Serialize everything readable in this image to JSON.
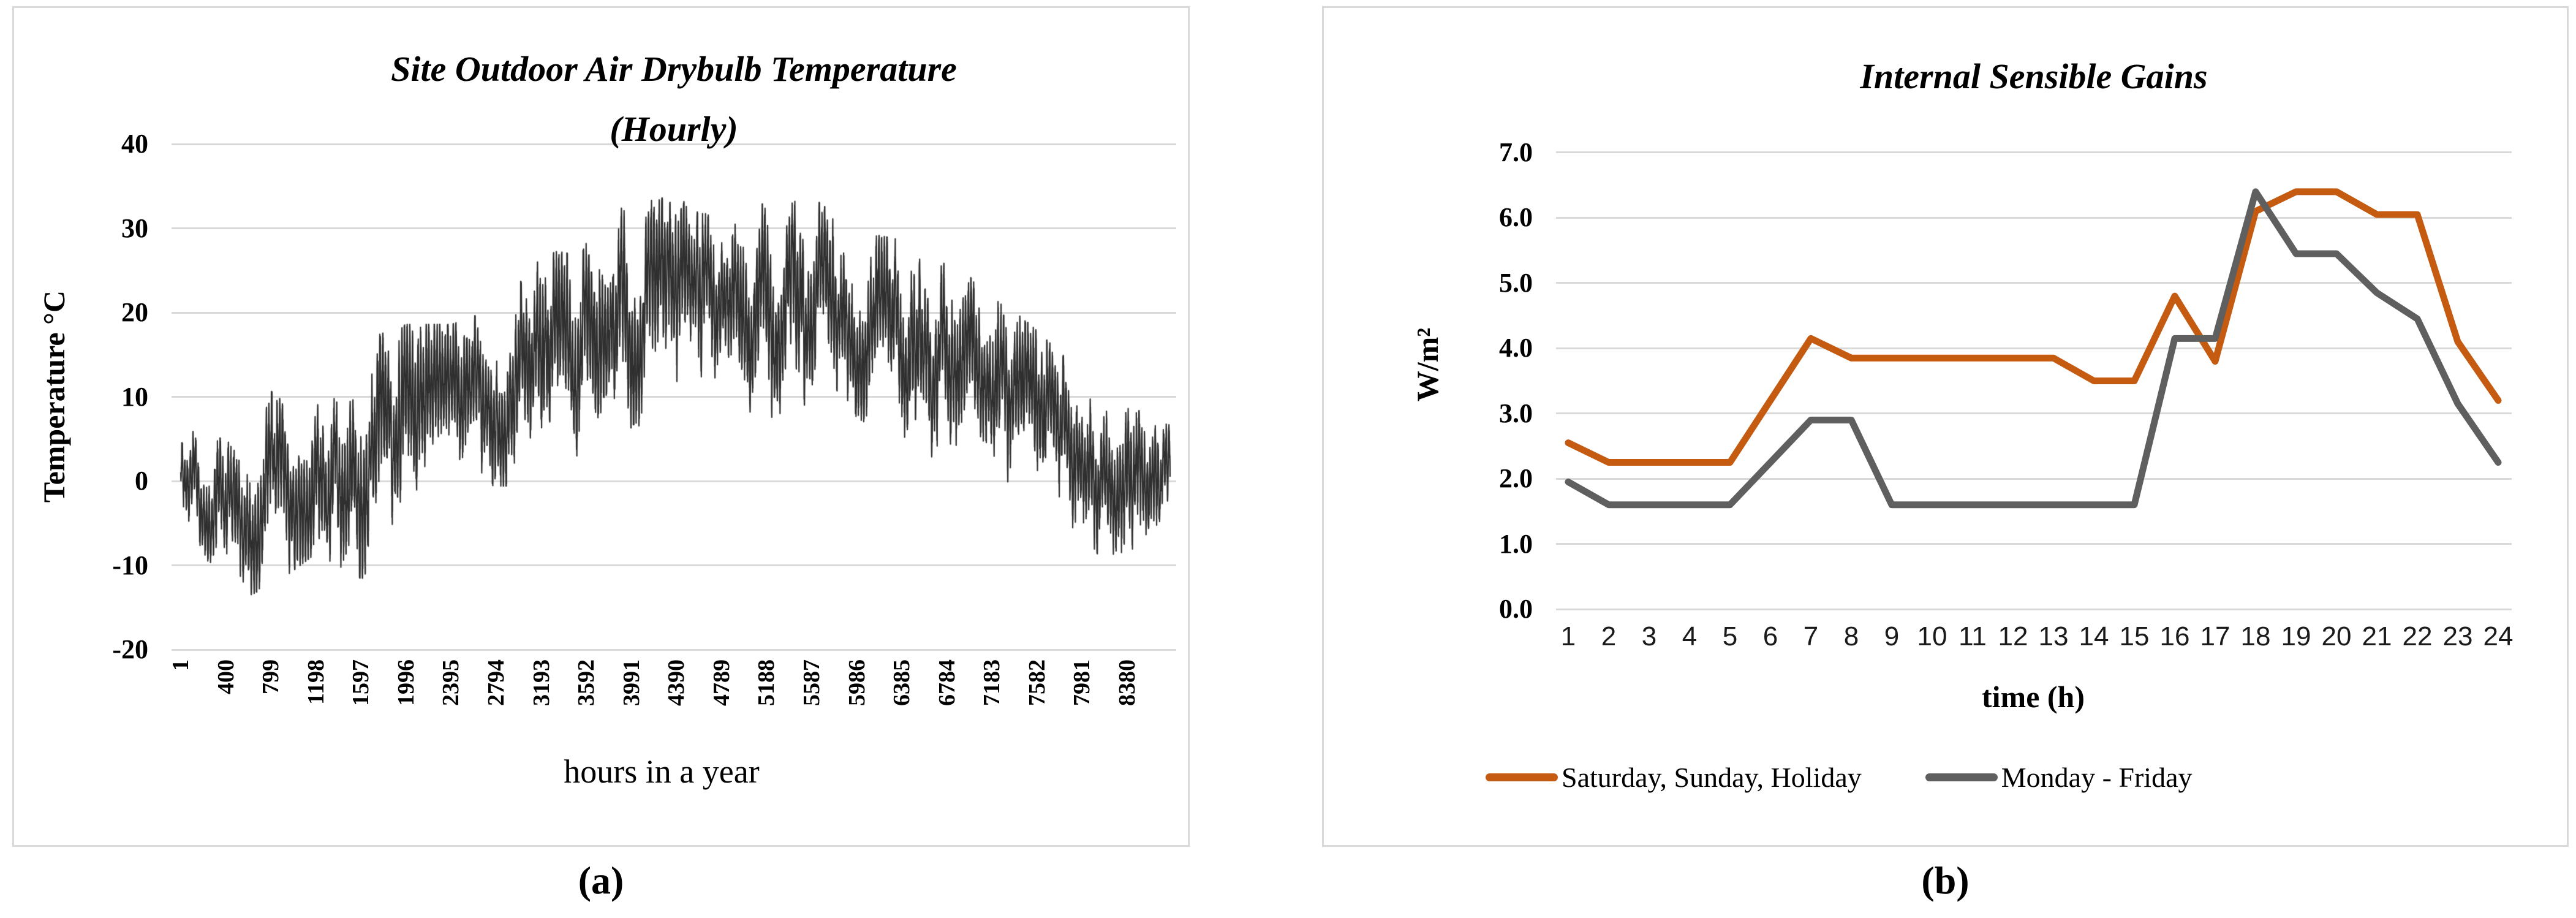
{
  "figure": {
    "caption_a": "(a)",
    "caption_b": "(b)"
  },
  "colors": {
    "grid": "#D9D9D9",
    "panel_border": "#D9D9D9",
    "temperature_series": "#2F2F2F",
    "weekend_series": "#C55A11",
    "weekday_series": "#5F5F5F"
  },
  "chart_data": [
    {
      "id": "a",
      "type": "line",
      "title": "Site Outdoor Air Drybulb Temperature (Hourly)",
      "title_lines": [
        "Site Outdoor Air Drybulb Temperature",
        "(Hourly)"
      ],
      "ylabel": "Temperature °C",
      "xlabel": "hours in a year",
      "ylim": [
        -20,
        40
      ],
      "y_ticks": [
        40,
        30,
        20,
        10,
        0,
        -10,
        -20
      ],
      "x_tick_labels": [
        "1",
        "400",
        "799",
        "1198",
        "1597",
        "1996",
        "2395",
        "2794",
        "3193",
        "3592",
        "3991",
        "4390",
        "4789",
        "5188",
        "5587",
        "5986",
        "6385",
        "6784",
        "7183",
        "7582",
        "7981",
        "8380"
      ],
      "grid": "horizontal",
      "n_points": 8760,
      "series_color": "#2F2F2F",
      "description": "Dense hourly outdoor drybulb temperature for one year (8760 points); jagged band bounded by the seasonal envelope below, minimum about -14 °C in winter, maximum about 33 °C in summer.",
      "envelope": {
        "hours": [
          1,
          400,
          800,
          1200,
          1600,
          2000,
          2400,
          2800,
          3200,
          3600,
          4000,
          4400,
          4800,
          5200,
          5600,
          6000,
          6400,
          6800,
          7200,
          7600,
          8000,
          8400,
          8760
        ],
        "min": [
          -2,
          -14,
          -12,
          -8,
          -11,
          -8,
          -3,
          0,
          0,
          4,
          7,
          8,
          10,
          8,
          10,
          8,
          5,
          2,
          0,
          -4,
          -6,
          -13,
          -5
        ],
        "max": [
          8,
          4,
          10,
          12,
          16,
          18,
          18,
          20,
          26,
          28,
          33,
          33,
          30,
          33,
          33,
          29,
          28,
          25,
          22,
          17,
          12,
          8,
          7
        ]
      }
    },
    {
      "id": "b",
      "type": "line",
      "title": "Internal Sensible Gains",
      "ylabel": "W/m²",
      "xlabel": "time (h)",
      "ylim": [
        0.0,
        7.0
      ],
      "y_tick_labels": [
        "7.0",
        "6.0",
        "5.0",
        "4.0",
        "3.0",
        "2.0",
        "1.0",
        "0.0"
      ],
      "x": [
        1,
        2,
        3,
        4,
        5,
        6,
        7,
        8,
        9,
        10,
        11,
        12,
        13,
        14,
        15,
        16,
        17,
        18,
        19,
        20,
        21,
        22,
        23,
        24
      ],
      "grid": "horizontal",
      "legend_position": "bottom",
      "series": [
        {
          "name": "Saturday, Sunday, Holiday",
          "color": "#C55A11",
          "values": [
            2.55,
            2.25,
            2.25,
            2.25,
            2.25,
            3.2,
            4.15,
            3.85,
            3.85,
            3.85,
            3.85,
            3.85,
            3.85,
            3.5,
            3.5,
            4.8,
            3.8,
            6.1,
            6.4,
            6.4,
            6.05,
            6.05,
            4.1,
            3.2
          ]
        },
        {
          "name": "Monday - Friday",
          "color": "#5F5F5F",
          "values": [
            1.95,
            1.6,
            1.6,
            1.6,
            1.6,
            2.25,
            2.9,
            2.9,
            1.6,
            1.6,
            1.6,
            1.6,
            1.6,
            1.6,
            1.6,
            4.15,
            4.15,
            6.4,
            5.45,
            5.45,
            4.85,
            4.45,
            3.15,
            2.25
          ]
        }
      ]
    }
  ]
}
